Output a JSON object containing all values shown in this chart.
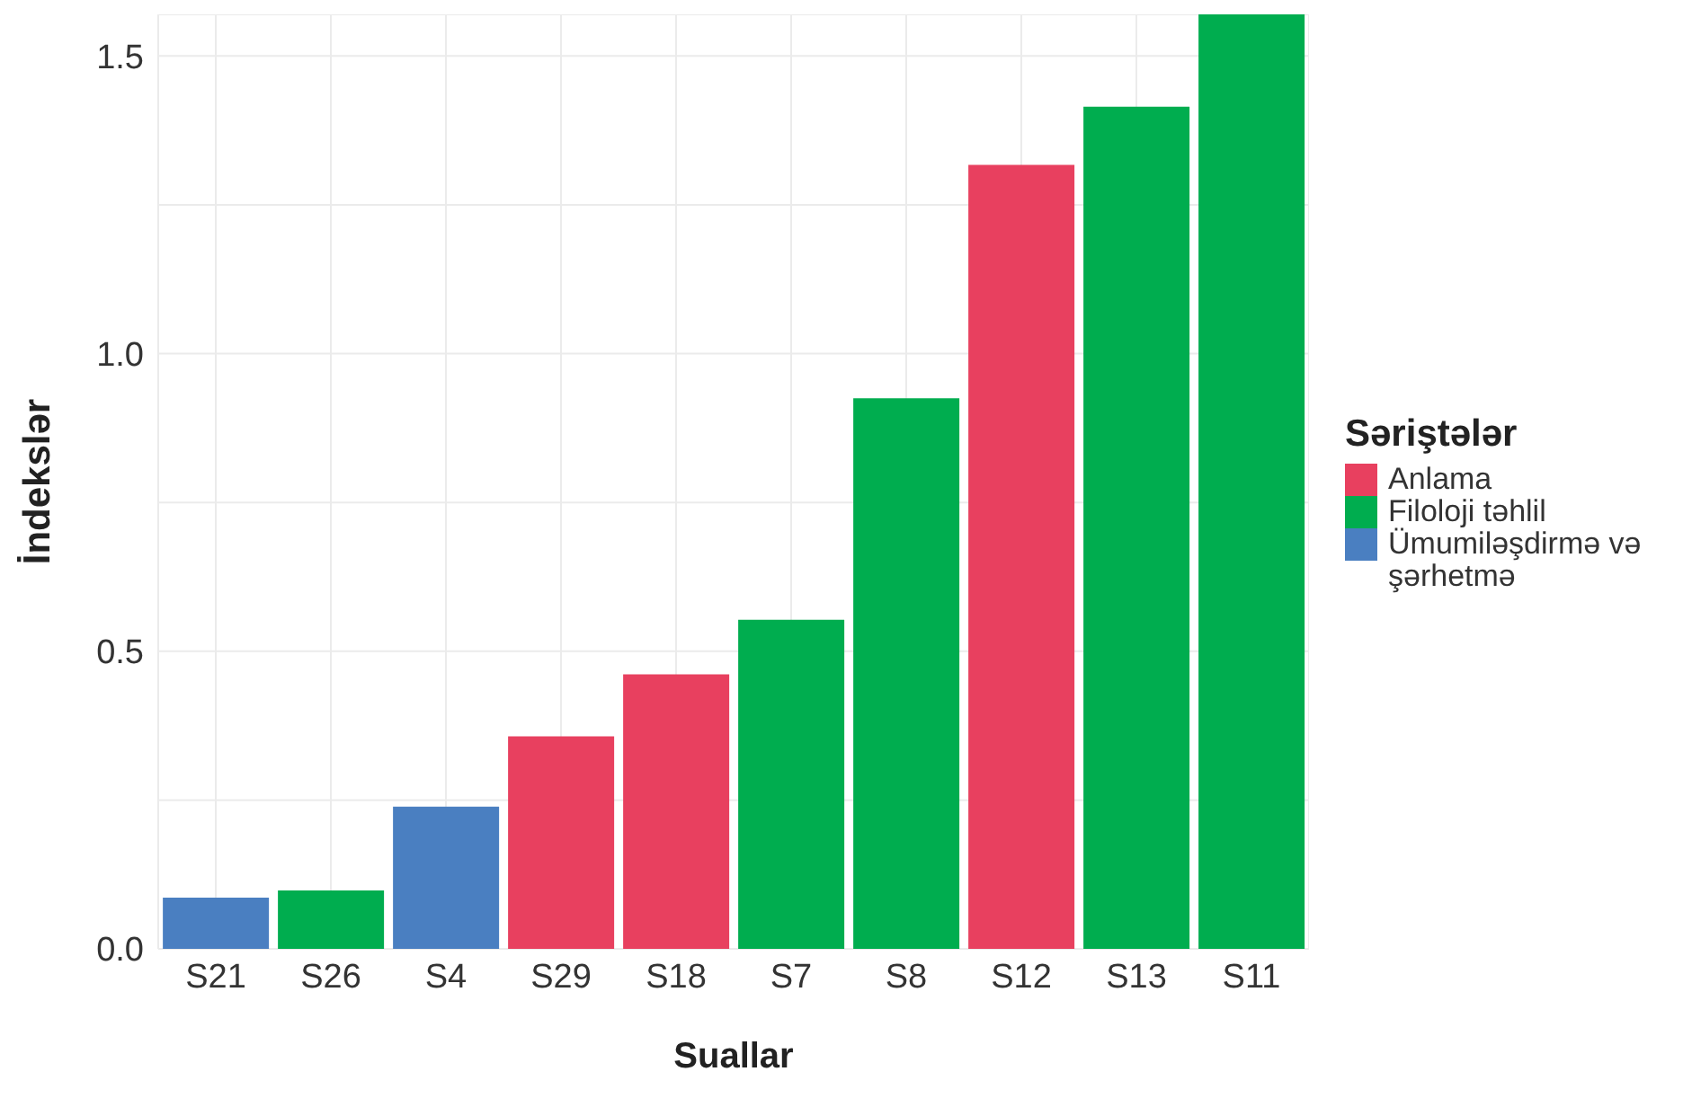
{
  "chart_data": {
    "type": "bar",
    "xlabel": "Suallar",
    "ylabel": "İndekslər",
    "legend_title": "Səriştələr",
    "legend": "right",
    "grid": true,
    "stacked": true,
    "categories": [
      "S21",
      "S26",
      "S4",
      "S29",
      "S18",
      "S7",
      "S8",
      "S12",
      "S13",
      "S11"
    ],
    "series": [
      {
        "name": "Anlama",
        "color": "#e8405f",
        "values": [
          null,
          null,
          null,
          0.357,
          0.461,
          null,
          null,
          1.317,
          null,
          null
        ]
      },
      {
        "name": "Filoloji təhlil",
        "color": "#00ad4f",
        "values": [
          null,
          0.098,
          null,
          null,
          null,
          0.553,
          0.925,
          null,
          1.415,
          1.57
        ]
      },
      {
        "name": "Ümumiləşdirmə və şərhetmə",
        "color": "#4a7fc1",
        "values": [
          0.086,
          null,
          0.239,
          null,
          null,
          null,
          null,
          null,
          null,
          null
        ]
      }
    ],
    "ylim": [
      0,
      1.57
    ],
    "yticks": [
      "0.0",
      {
        "value": 0.25,
        "label": null
      },
      {
        "value": 0.5,
        "label": "0.5"
      },
      {
        "value": 0.75,
        "label": null
      },
      {
        "value": 1,
        "label": "1.0"
      },
      {
        "value": 1.25,
        "label": null
      },
      {
        "value": 1.5,
        "label": "1.5"
      }
    ]
  }
}
